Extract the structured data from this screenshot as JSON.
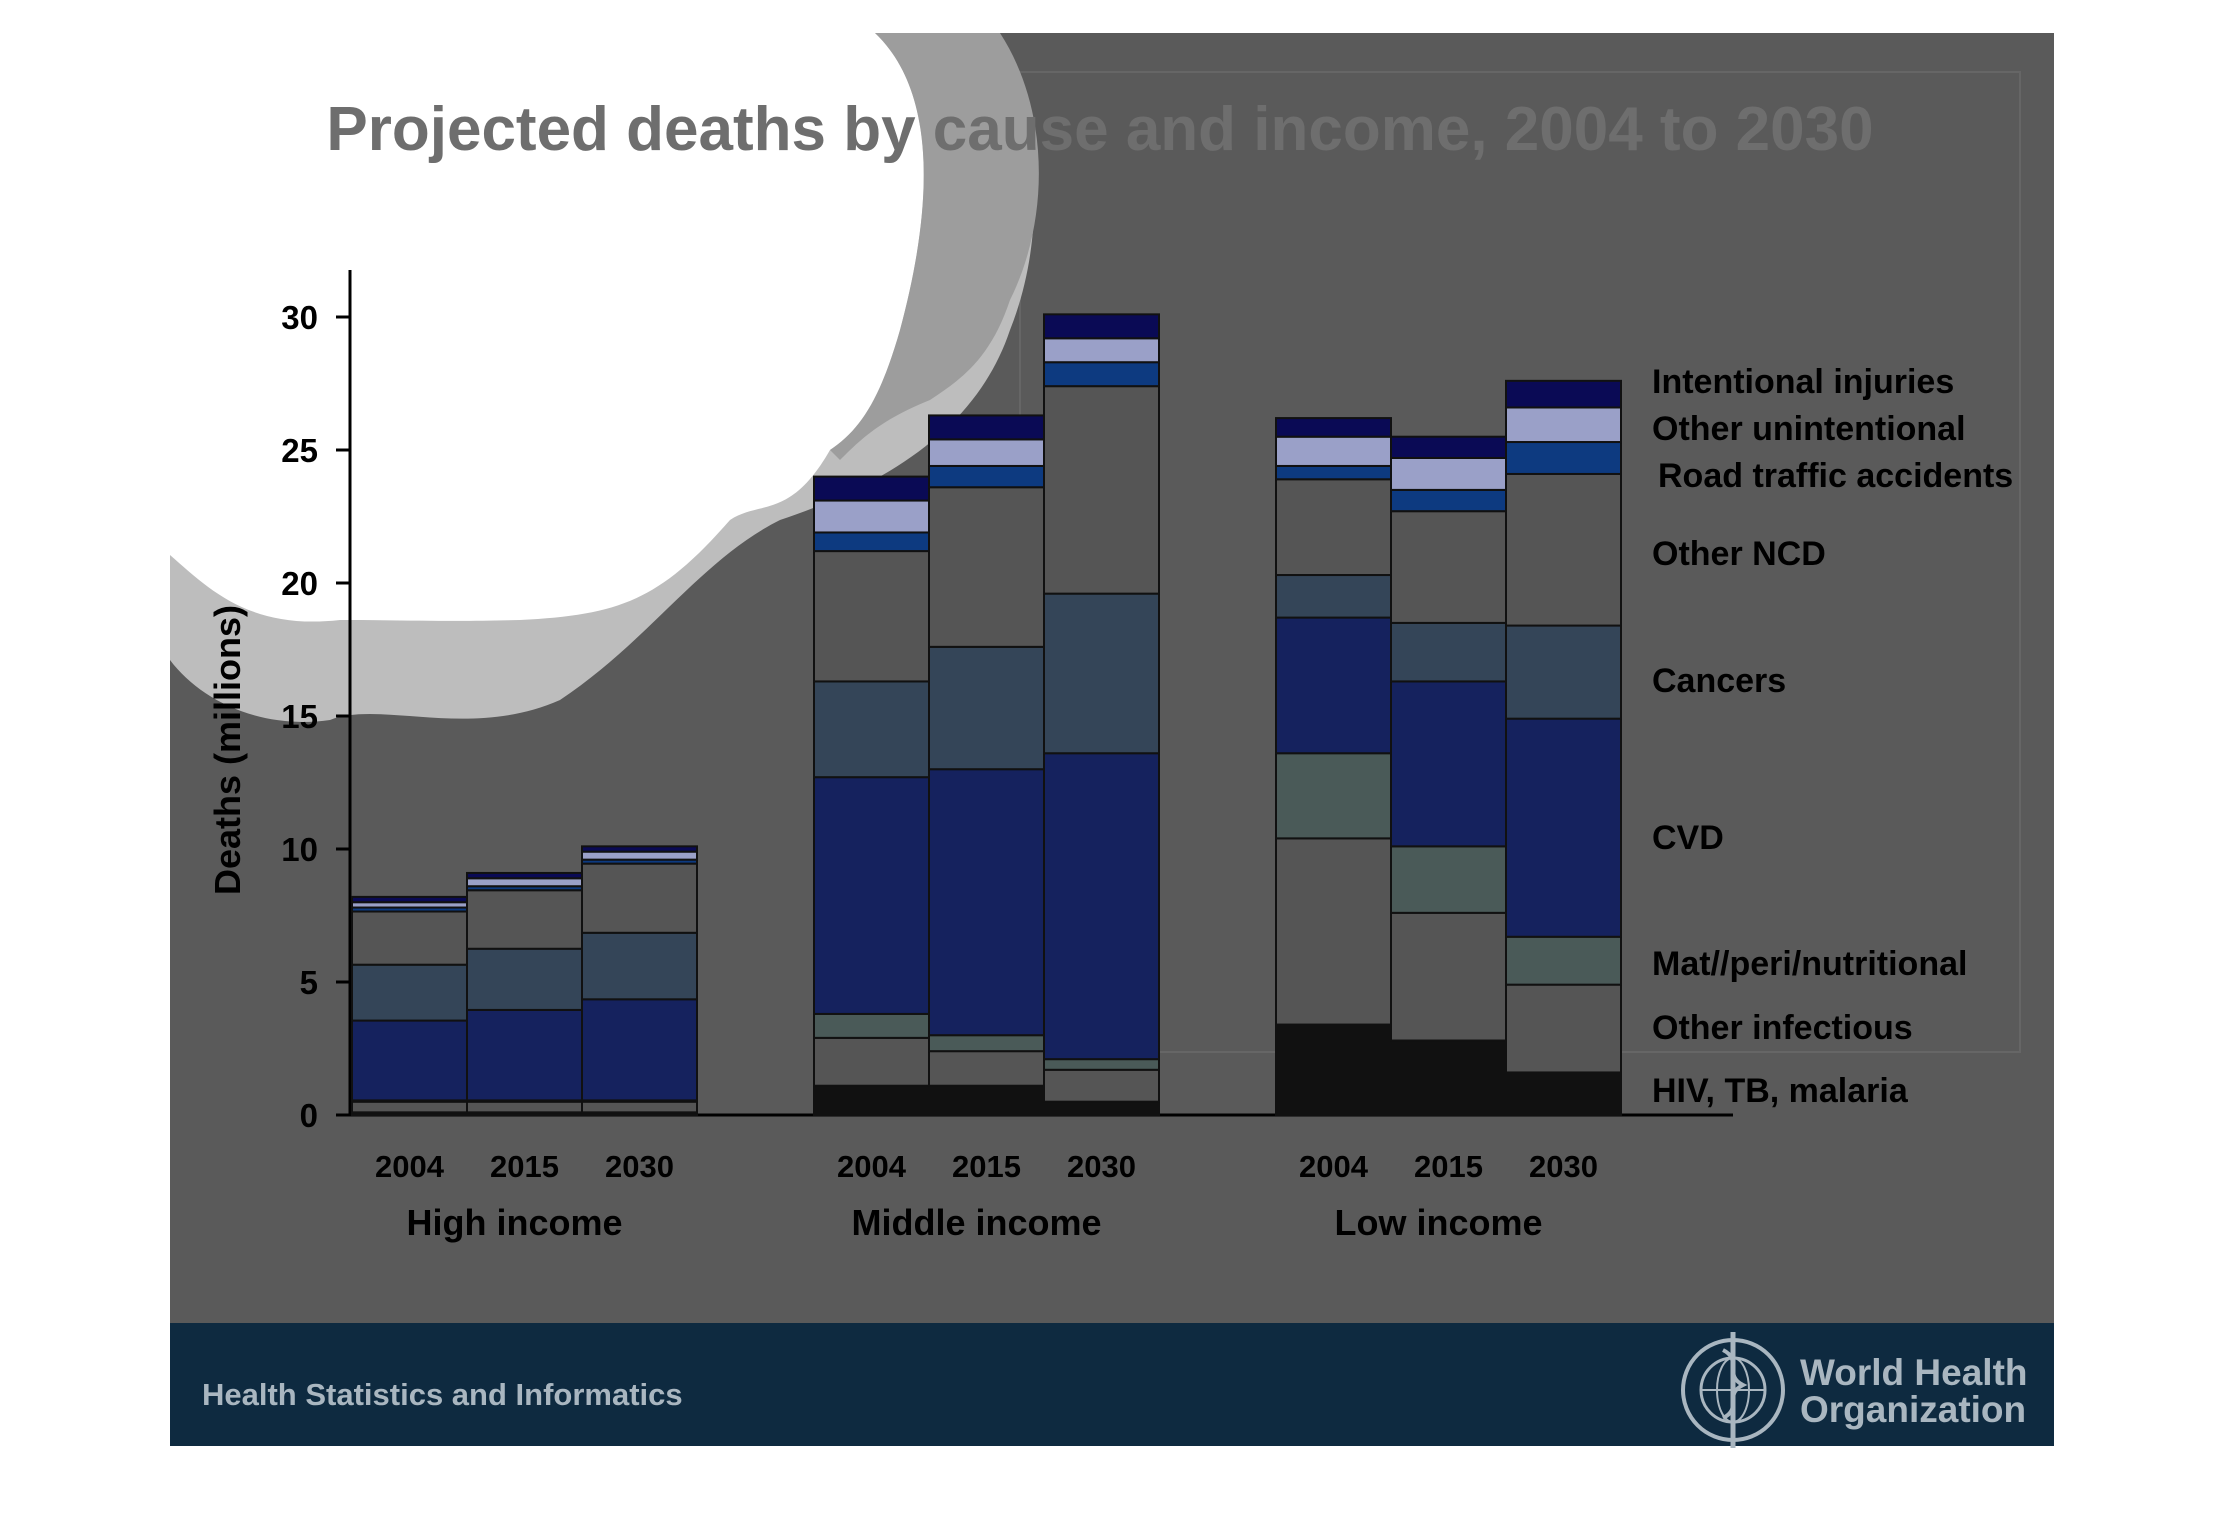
{
  "slide": {
    "title": "Projected deaths by cause and income, 2004 to 2030",
    "footer_text": "Health Statistics and Informatics",
    "logo_text_line1": "World Health",
    "logo_text_line2": "Organization"
  },
  "chart_data": {
    "type": "bar",
    "stacked": true,
    "title": "Projected deaths by cause and income, 2004 to 2030",
    "ylabel": "Deaths (millions)",
    "xlabel": "",
    "ylim": [
      0,
      32
    ],
    "yticks": [
      0,
      5,
      10,
      15,
      20,
      25,
      30
    ],
    "groups": [
      "High income",
      "Middle income",
      "Low income"
    ],
    "years": [
      "2004",
      "2015",
      "2030"
    ],
    "categories": [
      "High income 2004",
      "High income 2015",
      "High income 2030",
      "Middle income 2004",
      "Middle income 2015",
      "Middle income 2030",
      "Low income 2004",
      "Low income 2015",
      "Low income 2030"
    ],
    "series": [
      {
        "name": "HIV, TB, malaria",
        "color": "#111111",
        "values": [
          0.1,
          0.1,
          0.1,
          1.1,
          1.1,
          0.5,
          3.4,
          2.8,
          1.6
        ]
      },
      {
        "name": "Other infectious",
        "color": "#555555",
        "values": [
          0.4,
          0.4,
          0.4,
          1.8,
          1.3,
          1.2,
          7.0,
          4.8,
          3.3
        ]
      },
      {
        "name": "Mat//peri/nutritional",
        "color": "#4a5a58",
        "values": [
          0.05,
          0.05,
          0.05,
          0.9,
          0.6,
          0.4,
          3.2,
          2.5,
          1.8
        ]
      },
      {
        "name": "CVD",
        "color": "#15225e",
        "values": [
          3.0,
          3.4,
          3.8,
          8.9,
          10.0,
          11.5,
          5.1,
          6.2,
          8.2
        ]
      },
      {
        "name": "Cancers",
        "color": "#344558",
        "values": [
          2.1,
          2.3,
          2.5,
          3.6,
          4.6,
          6.0,
          1.6,
          2.2,
          3.5
        ]
      },
      {
        "name": "Other NCD",
        "color": "#555555",
        "values": [
          2.0,
          2.2,
          2.6,
          4.9,
          6.0,
          7.8,
          3.6,
          4.2,
          5.7
        ]
      },
      {
        "name": "Road traffic accidents",
        "color": "#0d3a80",
        "values": [
          0.15,
          0.15,
          0.15,
          0.7,
          0.8,
          0.9,
          0.5,
          0.8,
          1.2
        ]
      },
      {
        "name": "Other unintentional",
        "color": "#9aa0c8",
        "values": [
          0.2,
          0.3,
          0.3,
          1.2,
          1.0,
          0.9,
          1.1,
          1.2,
          1.3
        ]
      },
      {
        "name": "Intentional injuries",
        "color": "#0a0a55",
        "values": [
          0.2,
          0.2,
          0.2,
          0.9,
          0.9,
          0.9,
          0.7,
          0.8,
          1.0
        ]
      }
    ],
    "legend": {
      "placement": "right",
      "labels": [
        "Intentional injuries",
        "Other unintentional",
        "Road traffic accidents",
        "Other NCD",
        "Cancers",
        "CVD",
        "Mat//peri/nutritional",
        "Other infectious",
        "HIV, TB, malaria"
      ]
    },
    "grid": false
  },
  "colors": {
    "slide_bg": "#5a5a5a",
    "footer_bg": "#0e2a40",
    "title": "#6e6e6e",
    "text": "#000000",
    "footer_text": "#a9b6c0"
  }
}
